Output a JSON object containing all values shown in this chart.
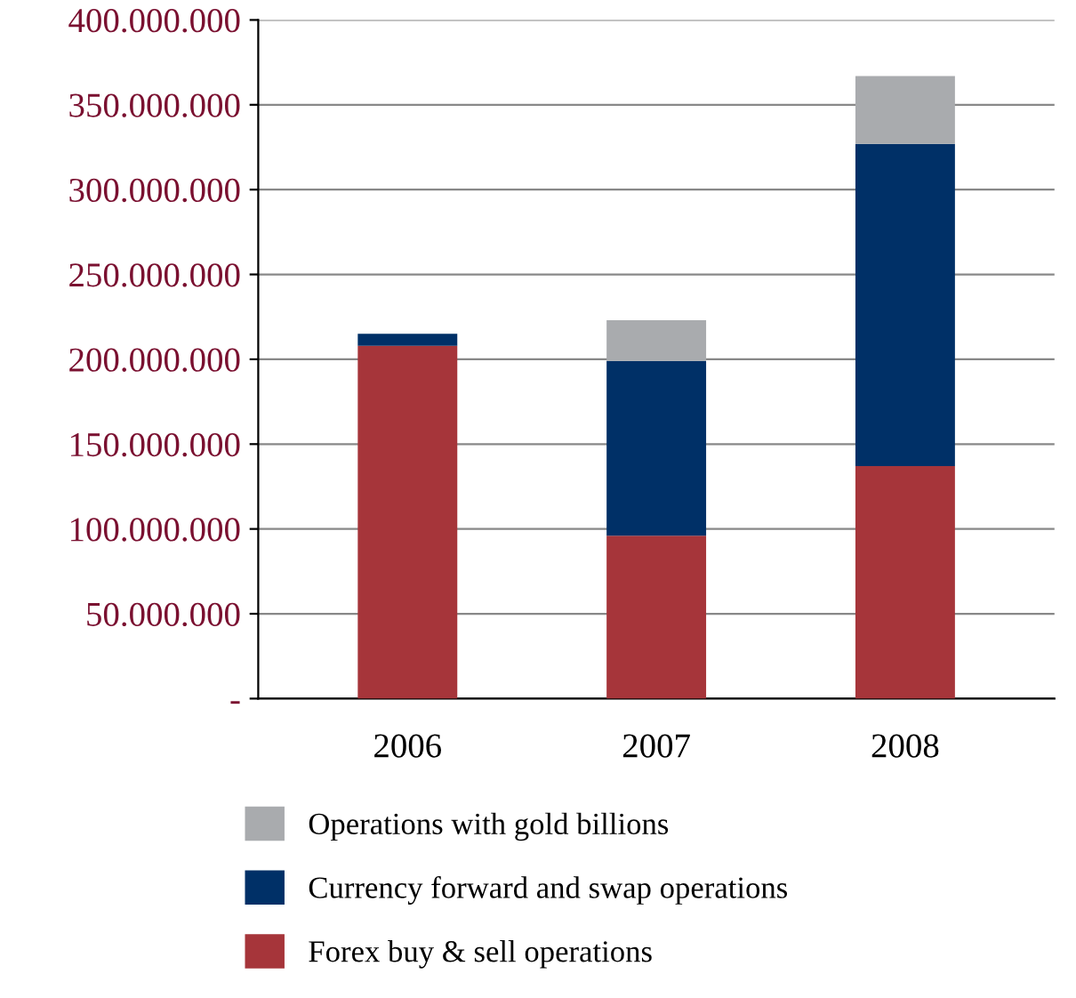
{
  "chart_data": {
    "type": "bar",
    "stacked": true,
    "categories": [
      "2006",
      "2007",
      "2008"
    ],
    "series": [
      {
        "name": "Forex buy & sell operations",
        "color": "#a6353a",
        "values": [
          208000000,
          96000000,
          137000000
        ]
      },
      {
        "name": "Currency forward and swap operations",
        "color": "#003067",
        "values": [
          7000000,
          103000000,
          190000000
        ]
      },
      {
        "name": "Operations with gold billions",
        "color": "#a9abae",
        "values": [
          null,
          24000000,
          40000000
        ]
      }
    ],
    "ylim": [
      0,
      400000000
    ],
    "yticks": [
      {
        "value": 0,
        "label": "-"
      },
      {
        "value": 50000000,
        "label": "50.000.000"
      },
      {
        "value": 100000000,
        "label": "100.000.000"
      },
      {
        "value": 150000000,
        "label": "150.000.000"
      },
      {
        "value": 200000000,
        "label": "200.000.000"
      },
      {
        "value": 250000000,
        "label": "250.000.000"
      },
      {
        "value": 300000000,
        "label": "300.000.000"
      },
      {
        "value": 350000000,
        "label": "350.000.000"
      },
      {
        "value": 400000000,
        "label": "400.000.000"
      }
    ],
    "grid": "y",
    "legend": "bottom"
  }
}
